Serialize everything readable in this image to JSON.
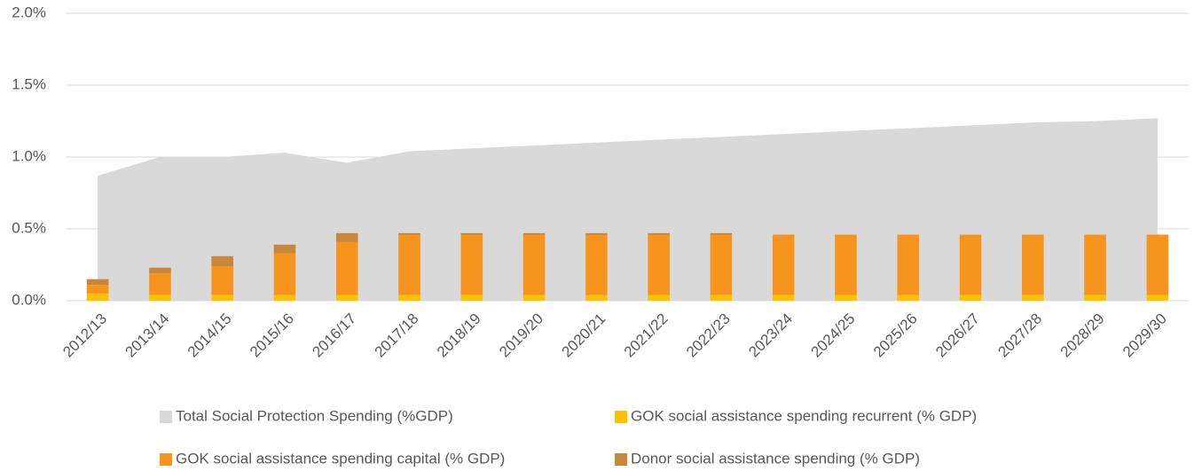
{
  "chart_data": {
    "type": "bar",
    "stacked": true,
    "categories": [
      "2012/13",
      "2013/14",
      "2014/15",
      "2015/16",
      "2016/17",
      "2017/18",
      "2018/19",
      "2019/20",
      "2020/21",
      "2021/22",
      "2022/23",
      "2023/24",
      "2024/25",
      "2025/26",
      "2026/27",
      "2027/28",
      "2028/29",
      "2029/30"
    ],
    "series": [
      {
        "name": "Total Social Protection Spending (%GDP)",
        "type": "area",
        "color": "#d9d9d9",
        "values": [
          0.87,
          1.0,
          1.0,
          1.03,
          0.96,
          1.04,
          1.06,
          1.08,
          1.1,
          1.12,
          1.14,
          1.16,
          1.18,
          1.2,
          1.22,
          1.24,
          1.25,
          1.27
        ]
      },
      {
        "name": "GOK  social assistance spending recurrent (% GDP)",
        "type": "bar",
        "color": "#ffc000",
        "values": [
          0.05,
          0.04,
          0.04,
          0.04,
          0.04,
          0.04,
          0.04,
          0.04,
          0.04,
          0.04,
          0.04,
          0.04,
          0.04,
          0.04,
          0.04,
          0.04,
          0.04,
          0.04
        ]
      },
      {
        "name": "GOK  social assistance spending capital (% GDP)",
        "type": "bar",
        "color": "#f7941d",
        "values": [
          0.06,
          0.15,
          0.2,
          0.29,
          0.37,
          0.42,
          0.42,
          0.42,
          0.42,
          0.42,
          0.42,
          0.42,
          0.42,
          0.42,
          0.42,
          0.42,
          0.42,
          0.42
        ]
      },
      {
        "name": "Donor  social assistance spending (% GDP)",
        "type": "bar",
        "color": "#c9873a",
        "values": [
          0.04,
          0.04,
          0.07,
          0.06,
          0.06,
          0.01,
          0.01,
          0.01,
          0.01,
          0.01,
          0.01,
          0,
          0,
          0,
          0,
          0,
          0,
          0
        ]
      }
    ],
    "ylim": [
      0,
      2
    ],
    "yticks": [
      {
        "value": 0,
        "label": "0.0%"
      },
      {
        "value": 0.5,
        "label": "0.5%"
      },
      {
        "value": 1,
        "label": "1.0%"
      },
      {
        "value": 1.5,
        "label": "1.5%"
      },
      {
        "value": 2,
        "label": "2.0%"
      }
    ],
    "grid": true,
    "legend": "bottom"
  }
}
